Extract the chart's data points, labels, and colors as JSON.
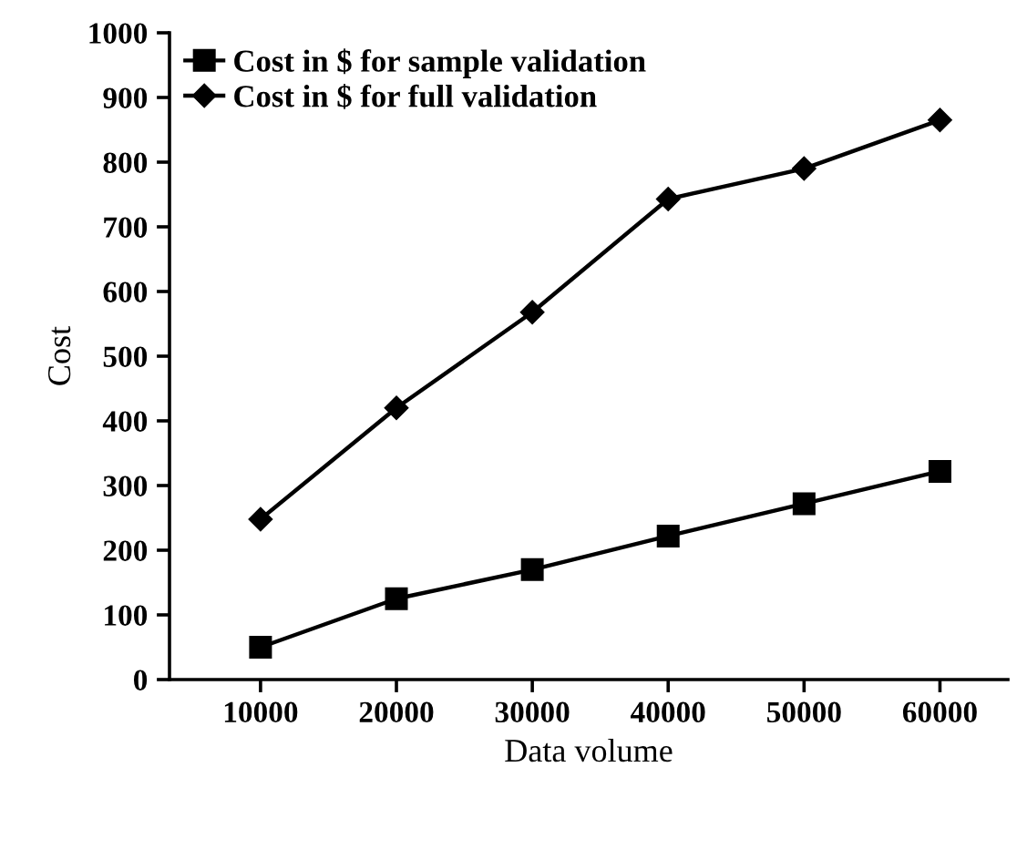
{
  "chart_data": {
    "type": "line",
    "xlabel": "Data volume",
    "ylabel": "Cost",
    "x": [
      10000,
      20000,
      30000,
      40000,
      50000,
      60000
    ],
    "series": [
      {
        "name": "Cost in $ for sample validation",
        "color": "#000000",
        "marker": "square",
        "values": [
          50,
          125,
          170,
          222,
          272,
          322
        ]
      },
      {
        "name": "Cost in $ for full validation",
        "color": "#000000",
        "marker": "diamond",
        "values": [
          248,
          420,
          568,
          743,
          790,
          865
        ]
      }
    ],
    "xlim": [
      3300,
      65000
    ],
    "xticks": [
      10000,
      20000,
      30000,
      40000,
      50000,
      60000
    ],
    "ylim": [
      0,
      1000
    ],
    "yticks": [
      0,
      100,
      200,
      300,
      400,
      500,
      600,
      700,
      800,
      900,
      1000
    ],
    "grid": false,
    "legend": "top left",
    "line_style": "solid"
  }
}
